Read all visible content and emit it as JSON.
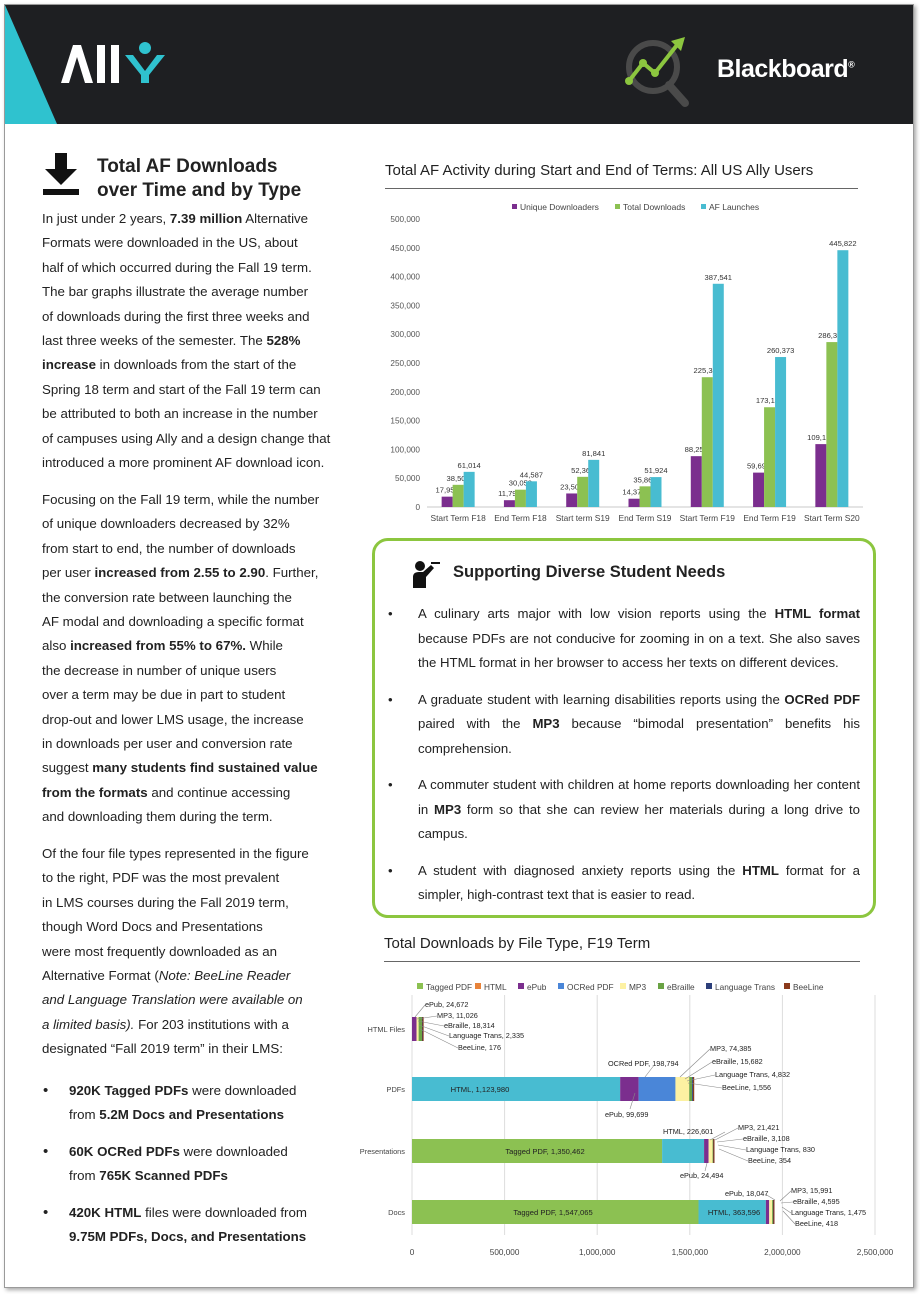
{
  "header": {
    "ally_logo": "ALLY",
    "blackboard_logo": "Blackboard"
  },
  "left": {
    "title_line1": "Total AF Downloads",
    "title_line2": "over Time and by Type",
    "p1_lines": [
      [
        "In just under 2 years, ",
        {
          "b": "7.39 million"
        },
        " Alternative"
      ],
      [
        "Formats were downloaded in the US, about"
      ],
      [
        "half of which occurred during the Fall 19 term."
      ],
      [
        "The bar graphs illustrate the average number"
      ],
      [
        "of downloads during the first three weeks and"
      ],
      [
        "last three weeks of the semester. The ",
        {
          "b": "528%"
        }
      ],
      [
        {
          "b": "increase"
        },
        " in downloads from the start of the"
      ],
      [
        "Spring 18 term and start of the Fall 19 term can"
      ],
      [
        "be attributed to both an increase in the number"
      ],
      [
        "of campuses using Ally and a design change that"
      ],
      [
        "introduced a more prominent AF download icon."
      ]
    ],
    "p2_lines": [
      [
        "Focusing on the Fall 19 term, while the number"
      ],
      [
        "of unique downloaders decreased by 32%"
      ],
      [
        "from start to end, the number of downloads"
      ],
      [
        "per user ",
        {
          "b": "increased from 2.55 to 2.90"
        },
        ". Further,"
      ],
      [
        "the conversion rate between launching the"
      ],
      [
        "AF modal and downloading a specific format"
      ],
      [
        "also ",
        {
          "b": "increased from 55% to 67%."
        },
        " While"
      ],
      [
        "the decrease in number of unique users"
      ],
      [
        "over a term may be due in part to student"
      ],
      [
        "drop-out and lower LMS usage, the increase"
      ],
      [
        "in downloads per user and conversion rate"
      ],
      [
        "suggest ",
        {
          "b": "many students find sustained value"
        }
      ],
      [
        {
          "b": "from the formats"
        },
        " and continue  accessing"
      ],
      [
        "and downloading them during the term."
      ]
    ],
    "p3_lines": [
      [
        "Of the four file types represented in the figure"
      ],
      [
        "to the right, PDF was the most prevalent"
      ],
      [
        "in LMS courses during the Fall 2019 term,"
      ],
      [
        "though Word Docs and Presentations"
      ],
      [
        "were most frequently downloaded as an"
      ],
      [
        "Alternative Format (",
        {
          "i": "Note: BeeLine Reader"
        }
      ],
      [
        {
          "i": "and Language Translation were available on"
        }
      ],
      [
        {
          "i": "a limited basis)."
        },
        "  For 203 institutions with a"
      ],
      [
        "designated “Fall 2019 term” in their LMS:"
      ]
    ],
    "bullets": [
      {
        "b1": "920K Tagged PDFs",
        "t1": " were downloaded",
        "t2": "from ",
        "b2": "5.2M Docs and Presentations"
      },
      {
        "b1": "60K OCRed PDFs",
        "t1": " were downloaded",
        "t2": "from ",
        "b2": "765K Scanned PDFs"
      },
      {
        "b1": "420K HTML",
        "t1": " files were downloaded from",
        "t2": "",
        "b2": "9.75M PDFs, Docs, and Presentations"
      }
    ],
    "bullet_glyph": "•"
  },
  "needs": {
    "title": "Supporting Diverse Student Needs",
    "items": [
      [
        {
          "t": "A culinary arts major with low vision reports using the "
        },
        {
          "b": "HTML format"
        },
        {
          "t": " because PDFs are not conducive for zooming in on a text. She also saves the HTML format in her browser to access her texts on different devices."
        }
      ],
      [
        {
          "t": "A graduate student with learning disabilities reports using the "
        },
        {
          "b": "OCRed PDF"
        },
        {
          "t": " paired with the "
        },
        {
          "b": "MP3"
        },
        {
          "t": " because “bimodal presentation” benefits his comprehension."
        }
      ],
      [
        {
          "t": "A commuter student with children at home reports downloading her content in "
        },
        {
          "b": "MP3"
        },
        {
          "t": " form so that she can review her materials during a long drive to campus."
        }
      ],
      [
        {
          "t": "A student with diagnosed anxiety reports using the "
        },
        {
          "b": "HTML"
        },
        {
          "t": " format for a simpler, high-contrast text that is easier to read."
        }
      ]
    ]
  },
  "colors": {
    "purple": "#7b2e8e",
    "green": "#8cc152",
    "teal": "#48bcd1",
    "tagged": "#8cc152",
    "html": "#e8833a",
    "epub": "#7b2e8e",
    "ocred": "#4a86d8",
    "mp3": "#fdf1a2",
    "ebraille": "#6aa344",
    "langtrans": "#2c3f7a",
    "beeline": "#8b3a1c"
  },
  "chart_data": [
    {
      "type": "bar",
      "title": "Total AF Activity during Start and End of Terms: All US Ally Users",
      "categories": [
        "Start Term F18",
        "End Term F18",
        "Start term S19",
        "End Term S19",
        "Start Term F19",
        "End Term F19",
        "Start Term S20"
      ],
      "series": [
        {
          "name": "Unique Downloaders",
          "values": [
            17959,
            11799,
            23501,
            14372,
            88255,
            59691,
            109178
          ],
          "labels": [
            "17,959",
            "11,799",
            "23,501",
            "14,372",
            "88,255",
            "59,691",
            "109,178"
          ]
        },
        {
          "name": "Total Downloads",
          "values": [
            38502,
            30058,
            52361,
            35860,
            225327,
            173183,
            286306
          ],
          "labels": [
            "38,502",
            "30,058",
            "52,361",
            "35,860",
            "225,327",
            "173,183",
            "286,306"
          ]
        },
        {
          "name": "AF Launches",
          "values": [
            61014,
            44587,
            81841,
            51924,
            387541,
            260373,
            445822
          ],
          "labels": [
            "61,014",
            "44,587",
            "81,841",
            "51,924",
            "387,541",
            "260,373",
            "445,822"
          ]
        }
      ],
      "ylim": [
        0,
        500000
      ],
      "yticks": [
        "0",
        "50,000",
        "100,000",
        "150,000",
        "200,000",
        "250,000",
        "300,000",
        "350,000",
        "400,000",
        "450,000",
        "500,000"
      ],
      "legend": "top-center"
    },
    {
      "type": "bar",
      "orientation": "horizontal-stacked",
      "title": "Total Downloads by File Type, F19 Term",
      "categories": [
        "HTML Files",
        "PDFs",
        "Presentations",
        "Docs"
      ],
      "series_names": [
        "Tagged PDF",
        "HTML",
        "ePub",
        "OCRed PDF",
        "MP3",
        "eBraille",
        "Language Trans",
        "BeeLine"
      ],
      "stacks": [
        {
          "category": "HTML Files",
          "segments": [
            [
              "ePub",
              24672
            ],
            [
              "MP3",
              11026
            ],
            [
              "eBraille",
              18314
            ],
            [
              "Language Trans",
              2335
            ],
            [
              "BeeLine",
              176
            ]
          ]
        },
        {
          "category": "PDFs",
          "segments": [
            [
              "HTML",
              1123980
            ],
            [
              "ePub",
              99699
            ],
            [
              "OCRed PDF",
              198794
            ],
            [
              "MP3",
              74385
            ],
            [
              "eBraille",
              15682
            ],
            [
              "Language Trans",
              4832
            ],
            [
              "BeeLine",
              1556
            ]
          ]
        },
        {
          "category": "Presentations",
          "segments": [
            [
              "Tagged PDF",
              1350462
            ],
            [
              "HTML",
              226601
            ],
            [
              "ePub",
              24494
            ],
            [
              "MP3",
              21421
            ],
            [
              "eBraille",
              3108
            ],
            [
              "Language Trans",
              830
            ],
            [
              "BeeLine",
              354
            ]
          ]
        },
        {
          "category": "Docs",
          "segments": [
            [
              "Tagged PDF",
              1547065
            ],
            [
              "HTML",
              363596
            ],
            [
              "ePub",
              18047
            ],
            [
              "MP3",
              15991
            ],
            [
              "eBraille",
              4595
            ],
            [
              "Language Trans",
              1475
            ],
            [
              "BeeLine",
              418
            ]
          ]
        }
      ],
      "inside_labels": [
        {
          "bar": 1,
          "text": "HTML, 1,123,980"
        },
        {
          "bar": 2,
          "text": "Tagged PDF, 1,350,462"
        },
        {
          "bar": 3,
          "text": "Tagged PDF, 1,547,065"
        },
        {
          "bar": 3,
          "text": "HTML, 363,596"
        }
      ],
      "callouts": [
        "ePub, 24,672",
        "MP3, 11,026",
        "eBraille, 18,314",
        "Language Trans, 2,335",
        "BeeLine, 176",
        "MP3, 74,385",
        "OCRed PDF, 198,794",
        "eBraille, 15,682",
        "Language Trans, 4,832",
        "BeeLine, 1,556",
        "ePub, 99,699",
        "HTML, 226,601",
        "MP3, 21,421",
        "eBraille, 3,108",
        "Language Trans, 830",
        "BeeLine, 354",
        "ePub, 24,494",
        "ePub, 18,047",
        "MP3, 15,991",
        "eBraille, 4,595",
        "Language Trans, 1,475",
        "BeeLine, 418"
      ],
      "xlim": [
        0,
        2500000
      ],
      "xticks": [
        "0",
        "500,000",
        "1,000,000",
        "1,500,000",
        "2,000,000",
        "2,500,000"
      ],
      "legend": "top"
    }
  ]
}
